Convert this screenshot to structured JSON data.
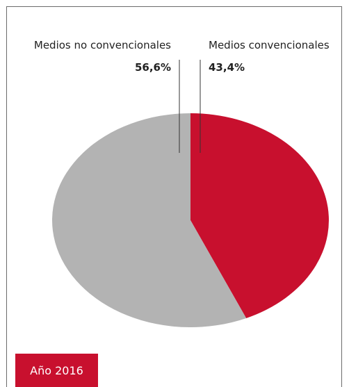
{
  "chart_data": {
    "type": "pie",
    "slices": [
      {
        "label": "Medios no convencionales",
        "value": 56.6,
        "value_label": "56,6%",
        "color": "#b3b3b3"
      },
      {
        "label": "Medios convencionales",
        "value": 43.4,
        "value_label": "43,4%",
        "color": "#c8102e"
      }
    ],
    "legend_placement": "top"
  },
  "footer": {
    "year_label": "Año 2016"
  },
  "colors": {
    "frame": "#6b6b6b",
    "accent": "#c8102e",
    "leader_line": "#333333"
  }
}
